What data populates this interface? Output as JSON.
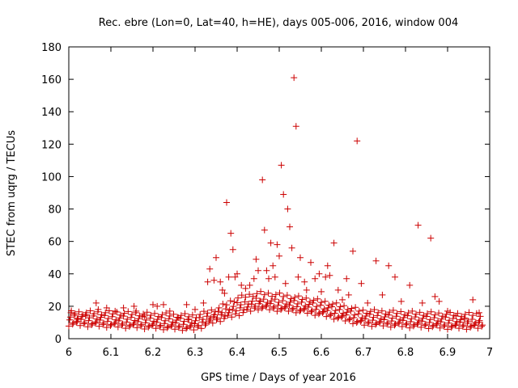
{
  "chart_data": {
    "type": "scatter",
    "title": "Rec. ebre (Lon=0, Lat=40, h=HE), days 005-006, 2016, window 004",
    "xlabel": "GPS time / Days of year 2016",
    "ylabel": "STEC from uqrg / TECUs",
    "xlim": [
      6,
      7
    ],
    "ylim": [
      0,
      180
    ],
    "xticks": [
      "6",
      "6.1",
      "6.2",
      "6.3",
      "6.4",
      "6.5",
      "6.6",
      "6.7",
      "6.8",
      "6.9",
      "7"
    ],
    "yticks": [
      "0",
      "20",
      "40",
      "60",
      "80",
      "100",
      "120",
      "140",
      "160",
      "180"
    ],
    "grid": false,
    "marker": "+",
    "color": "#cc0000",
    "baseline_series": {
      "x_start": 6.0,
      "x_end": 6.985,
      "x_step": 0.009,
      "tracks": [
        {
          "name": "track-1",
          "control_x": [
            6.0,
            6.1,
            6.2,
            6.3,
            6.35,
            6.4,
            6.45,
            6.5,
            6.55,
            6.6,
            6.65,
            6.7,
            6.8,
            6.9,
            6.99
          ],
          "control_y": [
            9,
            8,
            7,
            6,
            11,
            15,
            19,
            18,
            17,
            15,
            12,
            9,
            8,
            7,
            7
          ]
        },
        {
          "name": "track-2",
          "control_x": [
            6.0,
            6.1,
            6.2,
            6.3,
            6.35,
            6.4,
            6.45,
            6.5,
            6.55,
            6.6,
            6.65,
            6.7,
            6.8,
            6.9,
            6.99
          ],
          "control_y": [
            11,
            10,
            9,
            8,
            13,
            18,
            21,
            20,
            19,
            17,
            14,
            11,
            10,
            9,
            9
          ]
        },
        {
          "name": "track-3",
          "control_x": [
            6.0,
            6.1,
            6.2,
            6.3,
            6.35,
            6.4,
            6.45,
            6.5,
            6.55,
            6.6,
            6.65,
            6.7,
            6.8,
            6.9,
            6.99
          ],
          "control_y": [
            14,
            13,
            12,
            11,
            15,
            21,
            24,
            23,
            22,
            20,
            17,
            14,
            13,
            12,
            11
          ]
        },
        {
          "name": "track-4",
          "control_x": [
            6.0,
            6.1,
            6.2,
            6.3,
            6.35,
            6.4,
            6.45,
            6.5,
            6.55,
            6.6,
            6.65,
            6.7,
            6.8,
            6.9,
            6.99
          ],
          "control_y": [
            16,
            16,
            15,
            14,
            18,
            25,
            28,
            27,
            25,
            23,
            20,
            17,
            16,
            15,
            15
          ]
        }
      ]
    },
    "points": [
      [
        6.005,
        16
      ],
      [
        6.02,
        12
      ],
      [
        6.04,
        14
      ],
      [
        6.065,
        22
      ],
      [
        6.07,
        18
      ],
      [
        6.09,
        19
      ],
      [
        6.11,
        17
      ],
      [
        6.13,
        19
      ],
      [
        6.155,
        20
      ],
      [
        6.16,
        17
      ],
      [
        6.18,
        14
      ],
      [
        6.2,
        21
      ],
      [
        6.21,
        20
      ],
      [
        6.225,
        21
      ],
      [
        6.24,
        17
      ],
      [
        6.26,
        13
      ],
      [
        6.28,
        21
      ],
      [
        6.285,
        12
      ],
      [
        6.3,
        18
      ],
      [
        6.32,
        22
      ],
      [
        6.33,
        35
      ],
      [
        6.335,
        43
      ],
      [
        6.345,
        36
      ],
      [
        6.35,
        50
      ],
      [
        6.36,
        35
      ],
      [
        6.365,
        30
      ],
      [
        6.37,
        28
      ],
      [
        6.375,
        84
      ],
      [
        6.38,
        38
      ],
      [
        6.385,
        65
      ],
      [
        6.39,
        55
      ],
      [
        6.395,
        38
      ],
      [
        6.4,
        40
      ],
      [
        6.41,
        33
      ],
      [
        6.42,
        31
      ],
      [
        6.43,
        33
      ],
      [
        6.44,
        37
      ],
      [
        6.445,
        49
      ],
      [
        6.45,
        42
      ],
      [
        6.455,
        23
      ],
      [
        6.46,
        98
      ],
      [
        6.465,
        67
      ],
      [
        6.47,
        42
      ],
      [
        6.475,
        37
      ],
      [
        6.48,
        59
      ],
      [
        6.485,
        45
      ],
      [
        6.49,
        38
      ],
      [
        6.495,
        58
      ],
      [
        6.5,
        51
      ],
      [
        6.505,
        107
      ],
      [
        6.51,
        89
      ],
      [
        6.515,
        34
      ],
      [
        6.52,
        80
      ],
      [
        6.525,
        69
      ],
      [
        6.53,
        56
      ],
      [
        6.535,
        161
      ],
      [
        6.54,
        131
      ],
      [
        6.545,
        38
      ],
      [
        6.55,
        50
      ],
      [
        6.56,
        35
      ],
      [
        6.565,
        30
      ],
      [
        6.575,
        47
      ],
      [
        6.585,
        37
      ],
      [
        6.595,
        40
      ],
      [
        6.6,
        29
      ],
      [
        6.61,
        38
      ],
      [
        6.615,
        45
      ],
      [
        6.62,
        39
      ],
      [
        6.63,
        59
      ],
      [
        6.64,
        30
      ],
      [
        6.65,
        24
      ],
      [
        6.66,
        37
      ],
      [
        6.665,
        27
      ],
      [
        6.675,
        54
      ],
      [
        6.685,
        122
      ],
      [
        6.695,
        34
      ],
      [
        6.71,
        22
      ],
      [
        6.73,
        48
      ],
      [
        6.745,
        27
      ],
      [
        6.76,
        45
      ],
      [
        6.775,
        38
      ],
      [
        6.79,
        23
      ],
      [
        6.81,
        33
      ],
      [
        6.83,
        70
      ],
      [
        6.84,
        22
      ],
      [
        6.86,
        62
      ],
      [
        6.87,
        26
      ],
      [
        6.88,
        23
      ],
      [
        6.9,
        17
      ],
      [
        6.92,
        14
      ],
      [
        6.94,
        12
      ],
      [
        6.96,
        24
      ],
      [
        6.975,
        16
      ]
    ]
  }
}
